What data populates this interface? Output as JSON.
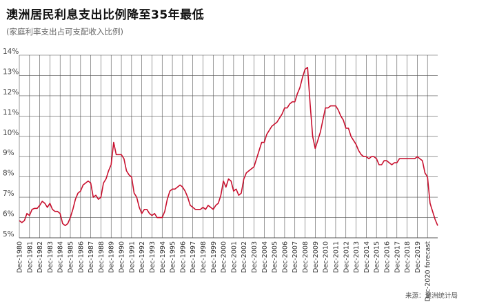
{
  "title": "澳洲居民利息支出比例降至35年最低",
  "subtitle": "(家庭利率支出占可支配收入比例)",
  "source": "来源：澳洲统计局",
  "colors": {
    "line": "#c8102e",
    "grid": "#555555",
    "axis": "#333333"
  },
  "chart_data": {
    "type": "line",
    "title": "澳洲居民利息支出比例降至35年最低",
    "subtitle": "(家庭利率支出占可支配收入比例)",
    "ylim": [
      5,
      14
    ],
    "y_ticks": [
      "5%",
      "6%",
      "7%",
      "8%",
      "9%",
      "10%",
      "11%",
      "12%",
      "13%",
      "14%"
    ],
    "x_ticks": [
      "Dec-1980",
      "Dec-1981",
      "Dec-1982",
      "Dec-1983",
      "Dec-1984",
      "Dec-1985",
      "Dec-1986",
      "Dec-1987",
      "Dec-1988",
      "Dec-1989",
      "Dec-1990",
      "Dec-1991",
      "Dec-1992",
      "Dec-1993",
      "Dec-1994",
      "Dec-1995",
      "Dec-1996",
      "Dec-1997",
      "Dec-1998",
      "Dec-1999",
      "Dec-2000",
      "Dec-2001",
      "Dec-2002",
      "Dec-2003",
      "Dec-2004",
      "Dec-2005",
      "Dec-2006",
      "Dec-2007",
      "Dec-2008",
      "Dec-2009",
      "Dec-2010",
      "Dec-2011",
      "Dec-2012",
      "Dec-2013",
      "Dec-2014",
      "Dec-2015",
      "Dec-2016",
      "Dec-2017",
      "Dec-2018",
      "Dec-2019",
      "Dec-2020 forecast"
    ],
    "grid": true,
    "series": [
      {
        "x": [
          1980.0,
          1980.25,
          1980.5,
          1980.75,
          1981.0,
          1981.25,
          1981.5,
          1981.75,
          1982.0,
          1982.25,
          1982.5,
          1982.75,
          1983.0,
          1983.25,
          1983.5,
          1983.75,
          1984.0,
          1984.25,
          1984.5,
          1984.75,
          1985.0,
          1985.25,
          1985.5,
          1985.75,
          1986.0,
          1986.25,
          1986.5,
          1986.75,
          1987.0,
          1987.25,
          1987.5,
          1987.75,
          1988.0,
          1988.25,
          1988.5,
          1988.75,
          1989.0,
          1989.25,
          1989.5,
          1989.75,
          1990.0,
          1990.25,
          1990.5,
          1990.75,
          1991.0,
          1991.25,
          1991.5,
          1991.75,
          1992.0,
          1992.25,
          1992.5,
          1992.75,
          1993.0,
          1993.25,
          1993.5,
          1993.75,
          1994.0,
          1994.25,
          1994.5,
          1994.75,
          1995.0,
          1995.25,
          1995.5,
          1995.75,
          1996.0,
          1996.25,
          1996.5,
          1996.75,
          1997.0,
          1997.25,
          1997.5,
          1997.75,
          1998.0,
          1998.25,
          1998.5,
          1998.75,
          1999.0,
          1999.25,
          1999.5,
          1999.75,
          2000.0,
          2000.25,
          2000.5,
          2000.75,
          2001.0,
          2001.25,
          2001.5,
          2001.75,
          2002.0,
          2002.25,
          2002.5,
          2002.75,
          2003.0,
          2003.25,
          2003.5,
          2003.75,
          2004.0,
          2004.25,
          2004.5,
          2004.75,
          2005.0,
          2005.25,
          2005.5,
          2005.75,
          2006.0,
          2006.25,
          2006.5,
          2006.75,
          2007.0,
          2007.25,
          2007.5,
          2007.75,
          2008.0,
          2008.25,
          2008.5,
          2008.75,
          2009.0,
          2009.25,
          2009.5,
          2009.75,
          2010.0,
          2010.25,
          2010.5,
          2010.75,
          2011.0,
          2011.25,
          2011.5,
          2011.75,
          2012.0,
          2012.25,
          2012.5,
          2012.75,
          2013.0,
          2013.25,
          2013.5,
          2013.75,
          2014.0,
          2014.25,
          2014.5,
          2014.75,
          2015.0,
          2015.25,
          2015.5,
          2015.75,
          2016.0,
          2016.25,
          2016.5,
          2016.75,
          2017.0,
          2017.25,
          2017.5,
          2017.75,
          2018.0,
          2018.25,
          2018.5,
          2018.75,
          2019.0,
          2019.25,
          2019.5,
          2019.75,
          2020.0,
          2020.25,
          2020.5,
          2020.75,
          2021.0
        ],
        "values": [
          5.85,
          5.75,
          5.85,
          6.2,
          6.1,
          6.4,
          6.45,
          6.45,
          6.6,
          6.8,
          6.7,
          6.5,
          6.7,
          6.4,
          6.3,
          6.3,
          6.2,
          5.7,
          5.6,
          5.7,
          6.0,
          6.4,
          6.9,
          7.2,
          7.3,
          7.6,
          7.7,
          7.8,
          7.7,
          7.0,
          7.1,
          6.9,
          7.0,
          7.7,
          7.9,
          8.3,
          8.6,
          9.7,
          9.1,
          9.1,
          9.1,
          8.9,
          8.3,
          8.1,
          8.0,
          7.2,
          7.0,
          6.5,
          6.2,
          6.4,
          6.4,
          6.2,
          6.1,
          6.2,
          6.0,
          6.0,
          6.0,
          6.3,
          6.9,
          7.3,
          7.4,
          7.4,
          7.5,
          7.6,
          7.5,
          7.3,
          7.0,
          6.6,
          6.5,
          6.4,
          6.4,
          6.4,
          6.5,
          6.4,
          6.6,
          6.5,
          6.4,
          6.6,
          6.7,
          7.1,
          7.8,
          7.5,
          7.9,
          7.8,
          7.3,
          7.4,
          7.1,
          7.2,
          7.9,
          8.2,
          8.3,
          8.4,
          8.5,
          8.9,
          9.3,
          9.7,
          9.7,
          10.1,
          10.3,
          10.5,
          10.6,
          10.7,
          10.9,
          11.1,
          11.4,
          11.4,
          11.6,
          11.7,
          11.7,
          12.1,
          12.4,
          12.9,
          13.3,
          13.4,
          11.6,
          10.0,
          9.4,
          9.8,
          10.2,
          10.8,
          11.4,
          11.4,
          11.5,
          11.5,
          11.5,
          11.3,
          11.0,
          10.8,
          10.4,
          10.4,
          10.0,
          9.8,
          9.6,
          9.3,
          9.1,
          9.0,
          9.0,
          8.9,
          9.0,
          9.0,
          8.9,
          8.6,
          8.6,
          8.8,
          8.8,
          8.7,
          8.6,
          8.7,
          8.7,
          8.9,
          8.9,
          8.9,
          8.9,
          8.9,
          8.9,
          8.9,
          9.0,
          8.9,
          8.8,
          8.2,
          8.0,
          6.7,
          6.3,
          5.9,
          5.6
        ]
      }
    ]
  }
}
